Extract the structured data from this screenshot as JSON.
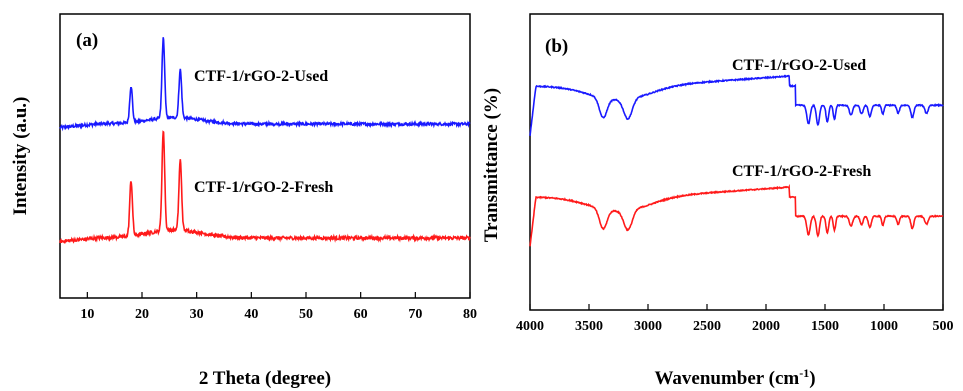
{
  "chart_data": [
    {
      "panel_label": "(a)",
      "type": "line",
      "xlabel": "2 Theta (degree)",
      "ylabel": "Intensity (a.u.)",
      "xlim": [
        5,
        80
      ],
      "x_ticks": [
        "10",
        "20",
        "30",
        "40",
        "50",
        "60",
        "70",
        "80"
      ],
      "y_ticks_shown": false,
      "series": [
        {
          "name": "CTF-1/rGO-2-Used",
          "color": "#1a1aff",
          "peaks": [
            [
              18.0,
              0.45
            ],
            [
              23.9,
              1.0
            ],
            [
              27.0,
              0.6
            ]
          ],
          "baseline": 0.0
        },
        {
          "name": "CTF-1/rGO-2-Fresh",
          "color": "#ff1a1a",
          "peaks": [
            [
              18.0,
              0.55
            ],
            [
              23.9,
              1.0
            ],
            [
              27.0,
              0.7
            ]
          ],
          "baseline": 0.0
        }
      ]
    },
    {
      "panel_label": "(b)",
      "type": "line",
      "xlabel": "Wavenumber (cm",
      "xlabel_sup": "-1",
      "xlabel_end": ")",
      "ylabel": "Transmittance (%)",
      "xlim": [
        4000,
        500
      ],
      "x_reversed": true,
      "x_ticks": [
        "4000",
        "3500",
        "3000",
        "2500",
        "2000",
        "1500",
        "1000",
        "500"
      ],
      "y_ticks_shown": false,
      "series": [
        {
          "name": "CTF-1/rGO-2-Used",
          "color": "#1a1aff"
        },
        {
          "name": "CTF-1/rGO-2-Fresh",
          "color": "#ff1a1a"
        }
      ]
    }
  ]
}
